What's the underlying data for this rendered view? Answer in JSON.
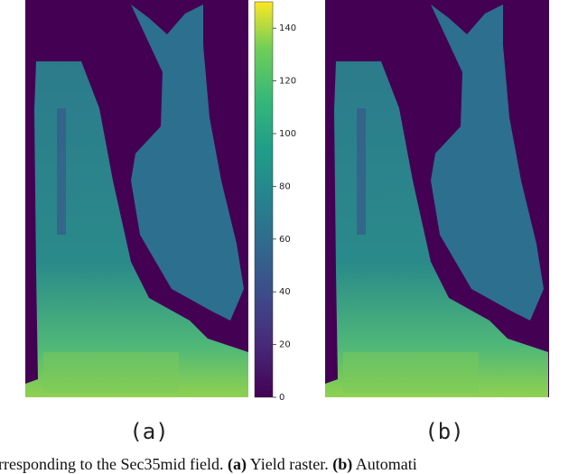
{
  "figure": {
    "panels": [
      {
        "label": "(a)"
      },
      {
        "label": "(b)"
      }
    ],
    "colorbar": {
      "lim": [
        0,
        150
      ],
      "ticks": [
        0,
        20,
        40,
        60,
        80,
        100,
        120,
        140
      ]
    },
    "caption": {
      "start": "rresponding to the Sec35mid field.",
      "label_a": "(a)",
      "text_a": "Yield raster.",
      "label_b": "(b)",
      "text_b": "Automati"
    }
  }
}
